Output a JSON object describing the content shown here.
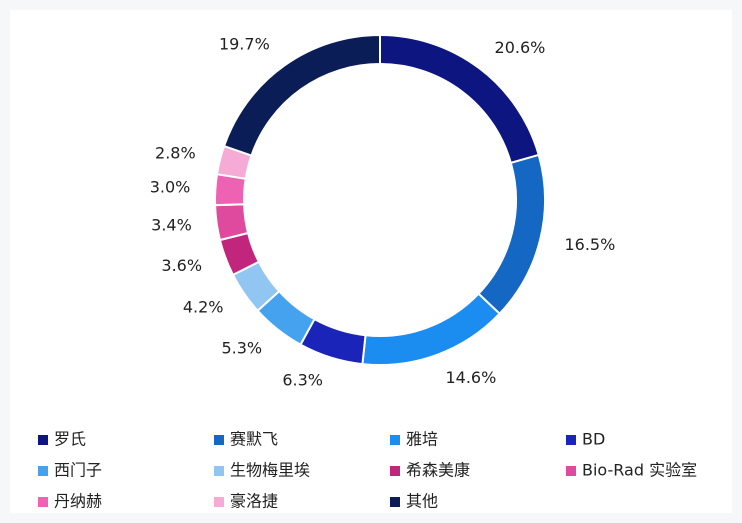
{
  "chart_data": {
    "type": "donut",
    "categories": [
      "罗氏",
      "赛默飞",
      "雅培",
      "BD",
      "西门子",
      "生物梅里埃",
      "希森美康",
      "Bio-Rad 实验室",
      "丹纳赫",
      "豪洛捷",
      "其他"
    ],
    "values": [
      20.6,
      16.5,
      14.6,
      6.3,
      5.3,
      4.2,
      3.6,
      3.4,
      3.0,
      2.8,
      19.7
    ],
    "value_labels": [
      "20.6%",
      "16.5%",
      "14.6%",
      "6.3%",
      "5.3%",
      "4.2%",
      "3.6%",
      "3.4%",
      "3.0%",
      "2.8%",
      "19.7%"
    ],
    "colors": [
      "#0c1580",
      "#1467c2",
      "#1b8cf0",
      "#1a24b8",
      "#45a2ee",
      "#92c6f2",
      "#c2267c",
      "#df4a9e",
      "#ee62b4",
      "#f6aad6",
      "#0b1d56"
    ]
  }
}
